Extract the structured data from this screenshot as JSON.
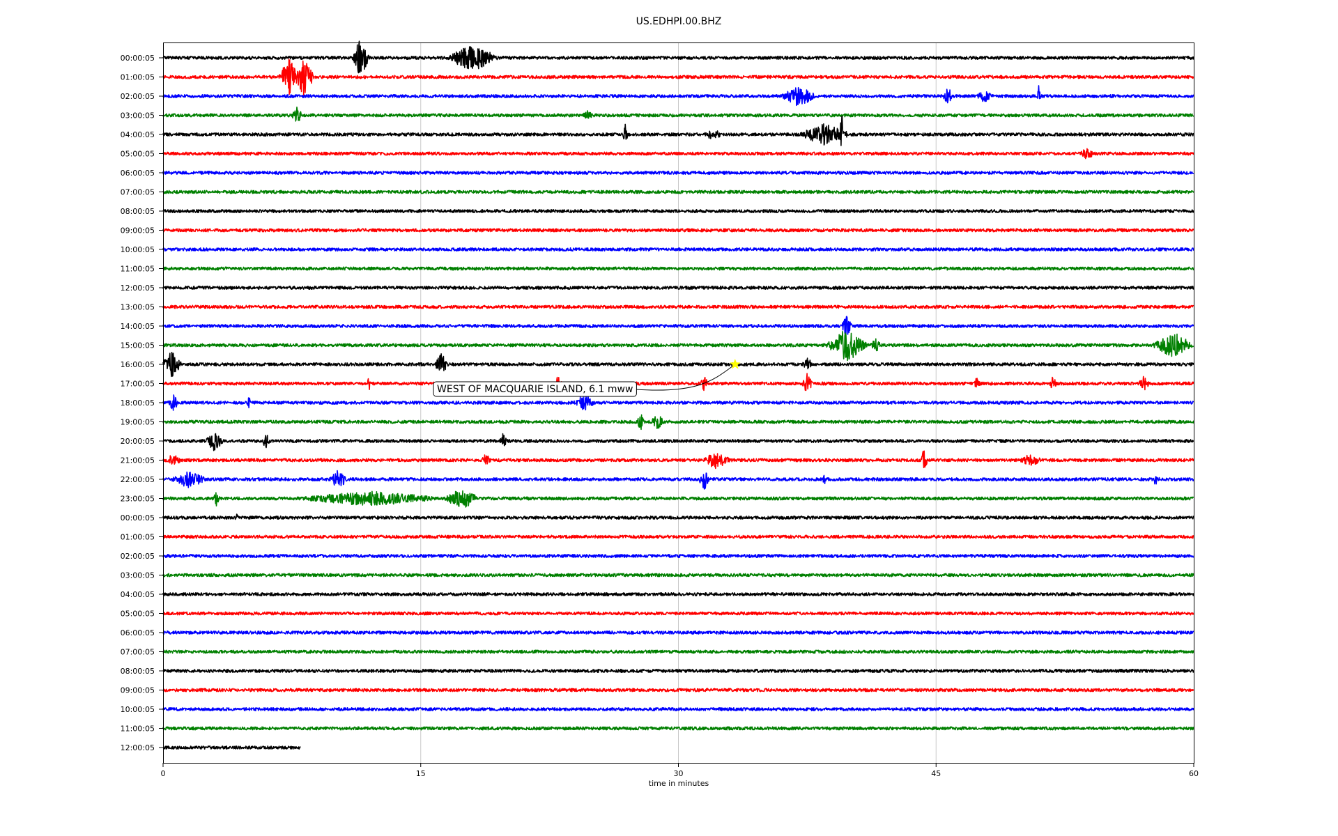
{
  "chart_data": {
    "type": "line",
    "title": "US.EDHPI.00.BHZ",
    "xlabel": "time in minutes",
    "ylabel": "",
    "xlim": [
      0,
      60
    ],
    "xticks": [
      0,
      15,
      30,
      45,
      60
    ],
    "grid": "vertical",
    "line_colors": [
      "#000000",
      "#ff0000",
      "#0000ff",
      "#008000"
    ],
    "row_labels": [
      "00:00:05",
      "01:00:05",
      "02:00:05",
      "03:00:05",
      "04:00:05",
      "05:00:05",
      "06:00:05",
      "07:00:05",
      "08:00:05",
      "09:00:05",
      "10:00:05",
      "11:00:05",
      "12:00:05",
      "13:00:05",
      "14:00:05",
      "15:00:05",
      "16:00:05",
      "17:00:05",
      "18:00:05",
      "19:00:05",
      "20:00:05",
      "21:00:05",
      "22:00:05",
      "23:00:05",
      "00:00:05",
      "01:00:05",
      "02:00:05",
      "03:00:05",
      "04:00:05",
      "05:00:05",
      "06:00:05",
      "07:00:05",
      "08:00:05",
      "09:00:05",
      "10:00:05",
      "11:00:05",
      "12:00:05"
    ],
    "last_row_end_minutes": 8,
    "events": [
      {
        "row": 0,
        "bursts": [
          [
            11.5,
            0.5,
            3
          ],
          [
            18,
            1.5,
            2
          ]
        ]
      },
      {
        "row": 1,
        "bursts": [
          [
            7.3,
            0.6,
            3
          ],
          [
            8.2,
            0.6,
            3
          ]
        ]
      },
      {
        "row": 2,
        "bursts": [
          [
            37,
            1,
            1.5
          ],
          [
            45.7,
            0.3,
            1.2
          ],
          [
            47.8,
            0.4,
            1.2
          ],
          [
            51,
            0.1,
            2
          ]
        ]
      },
      {
        "row": 3,
        "bursts": [
          [
            7.8,
            0.3,
            1.2
          ],
          [
            24.7,
            0.3,
            0.6
          ]
        ]
      },
      {
        "row": 4,
        "bursts": [
          [
            26.9,
            0.2,
            1.5
          ],
          [
            32,
            0.5,
            0.8
          ],
          [
            38.5,
            1.5,
            1.5
          ],
          [
            39.5,
            0.1,
            4
          ]
        ]
      },
      {
        "row": 5,
        "bursts": [
          [
            53.8,
            0.4,
            0.8
          ]
        ]
      },
      {
        "row": 14,
        "bursts": [
          [
            39.8,
            0.3,
            1.5
          ]
        ]
      },
      {
        "row": 15,
        "bursts": [
          [
            39.8,
            1.2,
            2.5
          ],
          [
            41.5,
            0.3,
            1
          ],
          [
            58.8,
            1.2,
            2
          ]
        ]
      },
      {
        "row": 16,
        "bursts": [
          [
            0.5,
            0.6,
            2
          ],
          [
            16.2,
            0.4,
            1.5
          ],
          [
            37.5,
            0.3,
            1
          ]
        ]
      },
      {
        "row": 17,
        "bursts": [
          [
            12,
            0.1,
            1.2
          ],
          [
            23,
            0.2,
            1.5
          ],
          [
            31.5,
            0.2,
            1.2
          ],
          [
            37.5,
            0.3,
            1.5
          ],
          [
            47.4,
            0.2,
            1
          ],
          [
            51.8,
            0.2,
            1
          ],
          [
            57.1,
            0.3,
            1
          ]
        ]
      },
      {
        "row": 18,
        "bursts": [
          [
            0.6,
            0.3,
            1.2
          ],
          [
            5,
            0.1,
            1
          ],
          [
            24.5,
            0.6,
            1.2
          ]
        ]
      },
      {
        "row": 19,
        "bursts": [
          [
            27.8,
            0.2,
            1.2
          ],
          [
            28.8,
            0.4,
            1
          ]
        ]
      },
      {
        "row": 20,
        "bursts": [
          [
            3,
            0.5,
            1.5
          ],
          [
            6,
            0.2,
            1.2
          ],
          [
            19.8,
            0.2,
            1.2
          ]
        ]
      },
      {
        "row": 21,
        "bursts": [
          [
            0.6,
            0.4,
            1.2
          ],
          [
            18.8,
            0.3,
            1
          ],
          [
            32.2,
            0.8,
            1.2
          ],
          [
            44.3,
            0.2,
            1.8
          ],
          [
            50.5,
            0.6,
            0.8
          ]
        ]
      },
      {
        "row": 22,
        "bursts": [
          [
            1.5,
            1,
            1.2
          ],
          [
            10.2,
            0.5,
            1.5
          ],
          [
            31.5,
            0.3,
            1.5
          ],
          [
            38.5,
            0.1,
            0.8
          ],
          [
            57.8,
            0.2,
            0.8
          ]
        ]
      },
      {
        "row": 23,
        "bursts": [
          [
            3.1,
            0.2,
            1
          ],
          [
            12,
            4,
            1
          ],
          [
            17.4,
            1,
            1.5
          ]
        ]
      },
      {
        "row": 24,
        "bursts": [
          [
            4.2,
            0.2,
            0.6
          ]
        ]
      }
    ],
    "annotation": {
      "text": "WEST OF MACQUARIE ISLAND, 6.1 mww",
      "marker_row": 16,
      "marker_minute": 33.3,
      "marker_color": "#ffff00"
    }
  }
}
